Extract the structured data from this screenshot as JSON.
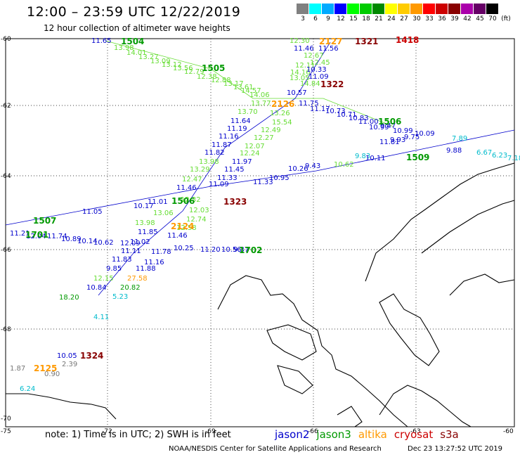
{
  "title": "12:00 – 23:59 UTC 12/22/2019",
  "subtitle": "12 hour collection of altimeter wave heights",
  "color_scale": {
    "unit_label": "(ft)",
    "values": [
      "3",
      "6",
      "9",
      "12",
      "15",
      "18",
      "21",
      "24",
      "27",
      "30",
      "33",
      "36",
      "39",
      "42",
      "45",
      "70"
    ],
    "colors": [
      "#808080",
      "#00ffff",
      "#00aaff",
      "#0000ff",
      "#00ff00",
      "#00cc00",
      "#008800",
      "#ffff00",
      "#ffcc00",
      "#ff9900",
      "#ff0000",
      "#cc0000",
      "#880000",
      "#aa00aa",
      "#660066",
      "#000000"
    ]
  },
  "axes": {
    "lat_labels": [
      "-60",
      "-62",
      "-64",
      "-66",
      "-68",
      "-70"
    ],
    "lon_labels": [
      "-75",
      "-72",
      "-69",
      "-66",
      "-63",
      "-60"
    ]
  },
  "palette": {
    "jason2": "#0000cc",
    "jason3": "#009900",
    "altika": "#ff9900",
    "cryosat": "#cc0000",
    "s3a": "#880000",
    "jason3_light": "#66dd33",
    "cyan": "#00bbcc",
    "gray": "#777777"
  },
  "pass_tags": [
    {
      "text": "1504",
      "color": "jason3"
    },
    {
      "text": "1505",
      "color": "jason3"
    },
    {
      "text": "1506",
      "color": "jason3"
    },
    {
      "text": "1509",
      "color": "jason3"
    },
    {
      "text": "1507",
      "color": "jason3"
    },
    {
      "text": "1701",
      "color": "jason3"
    },
    {
      "text": "1702",
      "color": "jason3"
    },
    {
      "text": "1506",
      "color": "jason3"
    },
    {
      "text": "2127",
      "color": "altika"
    },
    {
      "text": "2126",
      "color": "altika"
    },
    {
      "text": "2124",
      "color": "altika"
    },
    {
      "text": "2125",
      "color": "altika"
    },
    {
      "text": "1321",
      "color": "s3a"
    },
    {
      "text": "1322",
      "color": "s3a"
    },
    {
      "text": "1323",
      "color": "s3a"
    },
    {
      "text": "1324",
      "color": "s3a"
    },
    {
      "text": "1418",
      "color": "cryosat"
    }
  ],
  "wave_heights": [
    {
      "text": "11.65",
      "color": "jason2"
    },
    {
      "text": "13.98",
      "color": "jason3_light"
    },
    {
      "text": "14.01",
      "color": "jason3_light"
    },
    {
      "text": "13.27",
      "color": "jason3_light"
    },
    {
      "text": "13.09",
      "color": "jason3_light"
    },
    {
      "text": "13.12",
      "color": "jason3_light"
    },
    {
      "text": "13.56",
      "color": "jason3_light"
    },
    {
      "text": "12.79",
      "color": "jason3_light"
    },
    {
      "text": "12.38",
      "color": "jason3_light"
    },
    {
      "text": "12.88",
      "color": "jason3_light"
    },
    {
      "text": "13.17",
      "color": "jason3_light"
    },
    {
      "text": "13.61",
      "color": "jason3_light"
    },
    {
      "text": "14.57",
      "color": "jason3_light"
    },
    {
      "text": "14.06",
      "color": "jason3_light"
    },
    {
      "text": "13.77",
      "color": "jason3_light"
    },
    {
      "text": "13.70",
      "color": "jason3_light"
    },
    {
      "text": "12.30",
      "color": "jason3_light"
    },
    {
      "text": "11.46",
      "color": "jason2"
    },
    {
      "text": "11.56",
      "color": "jason2"
    },
    {
      "text": "12.67",
      "color": "jason3_light"
    },
    {
      "text": "12.45",
      "color": "jason3_light"
    },
    {
      "text": "12.11",
      "color": "jason3_light"
    },
    {
      "text": "14.16",
      "color": "jason3_light"
    },
    {
      "text": "10.33",
      "color": "jason2"
    },
    {
      "text": "13.05",
      "color": "jason3_light"
    },
    {
      "text": "11.09",
      "color": "jason2"
    },
    {
      "text": "14.84",
      "color": "jason3_light"
    },
    {
      "text": "10.57",
      "color": "jason2"
    },
    {
      "text": "11.75",
      "color": "jason2"
    },
    {
      "text": "11.17",
      "color": "jason2"
    },
    {
      "text": "10.73",
      "color": "jason2"
    },
    {
      "text": "13.26",
      "color": "jason3_light"
    },
    {
      "text": "10.71",
      "color": "jason2"
    },
    {
      "text": "10.83",
      "color": "jason2"
    },
    {
      "text": "11.64",
      "color": "jason2"
    },
    {
      "text": "15.54",
      "color": "jason3_light"
    },
    {
      "text": "11.00",
      "color": "jason2"
    },
    {
      "text": "10.99",
      "color": "jason2"
    },
    {
      "text": "9.47",
      "color": "jason2"
    },
    {
      "text": "10.99",
      "color": "jason2"
    },
    {
      "text": "11.19",
      "color": "jason2"
    },
    {
      "text": "12.49",
      "color": "jason3_light"
    },
    {
      "text": "11.16",
      "color": "jason2"
    },
    {
      "text": "12.27",
      "color": "jason3_light"
    },
    {
      "text": "11.87",
      "color": "jason2"
    },
    {
      "text": "12.07",
      "color": "jason3_light"
    },
    {
      "text": "11.82",
      "color": "jason2"
    },
    {
      "text": "12.24",
      "color": "jason3_light"
    },
    {
      "text": "13.98",
      "color": "jason3_light"
    },
    {
      "text": "11.97",
      "color": "jason2"
    },
    {
      "text": "13.29",
      "color": "jason3_light"
    },
    {
      "text": "11.45",
      "color": "jason2"
    },
    {
      "text": "12.47",
      "color": "jason3_light"
    },
    {
      "text": "11.33",
      "color": "jason2"
    },
    {
      "text": "11.46",
      "color": "jason2"
    },
    {
      "text": "11.09",
      "color": "jason2"
    },
    {
      "text": "12.32",
      "color": "jason3_light"
    },
    {
      "text": "12.03",
      "color": "jason3_light"
    },
    {
      "text": "13.06",
      "color": "jason3_light"
    },
    {
      "text": "12.74",
      "color": "jason3_light"
    },
    {
      "text": "13.98",
      "color": "jason3_light"
    },
    {
      "text": "12.58",
      "color": "jason3_light"
    },
    {
      "text": "11.85",
      "color": "jason2"
    },
    {
      "text": "11.46",
      "color": "jason2"
    },
    {
      "text": "11.02",
      "color": "jason2"
    },
    {
      "text": "12.09",
      "color": "jason2"
    },
    {
      "text": "10.25",
      "color": "jason2"
    },
    {
      "text": "11.20",
      "color": "jason2"
    },
    {
      "text": "10.56",
      "color": "jason2"
    },
    {
      "text": "9.37",
      "color": "jason2"
    },
    {
      "text": "11.11",
      "color": "jason2"
    },
    {
      "text": "11.78",
      "color": "jason2"
    },
    {
      "text": "11.83",
      "color": "jason2"
    },
    {
      "text": "11.16",
      "color": "jason2"
    },
    {
      "text": "9.85",
      "color": "jason2"
    },
    {
      "text": "11.88",
      "color": "jason2"
    },
    {
      "text": "12.15",
      "color": "jason3_light"
    },
    {
      "text": "27.58",
      "color": "altika"
    },
    {
      "text": "10.84",
      "color": "jason2"
    },
    {
      "text": "20.82",
      "color": "jason3"
    },
    {
      "text": "18.20",
      "color": "jason3"
    },
    {
      "text": "5.23",
      "color": "cyan"
    },
    {
      "text": "4.11",
      "color": "cyan"
    },
    {
      "text": "11.21",
      "color": "jason2"
    },
    {
      "text": "12.04",
      "color": "jason2"
    },
    {
      "text": "11.74",
      "color": "jason2"
    },
    {
      "text": "10.89",
      "color": "jason2"
    },
    {
      "text": "10.14",
      "color": "jason2"
    },
    {
      "text": "10.62",
      "color": "jason2"
    },
    {
      "text": "11.05",
      "color": "jason2"
    },
    {
      "text": "11.01",
      "color": "jason2"
    },
    {
      "text": "10.17",
      "color": "jason2"
    },
    {
      "text": "10.26",
      "color": "jason2"
    },
    {
      "text": "11.81",
      "color": "jason2"
    },
    {
      "text": "9.93",
      "color": "jason2"
    },
    {
      "text": "9.75",
      "color": "jason2"
    },
    {
      "text": "10.09",
      "color": "jason2"
    },
    {
      "text": "9.88",
      "color": "jason2"
    },
    {
      "text": "6.67",
      "color": "cyan"
    },
    {
      "text": "6.23",
      "color": "cyan"
    },
    {
      "text": "7.18",
      "color": "cyan"
    },
    {
      "text": "7.89",
      "color": "cyan"
    },
    {
      "text": "9.83",
      "color": "cyan"
    },
    {
      "text": "10.11",
      "color": "jason2"
    },
    {
      "text": "9.43",
      "color": "jason2"
    },
    {
      "text": "10.62",
      "color": "jason3_light"
    },
    {
      "text": "11.33",
      "color": "jason2"
    },
    {
      "text": "10.95",
      "color": "jason2"
    },
    {
      "text": "10.05",
      "color": "jason2"
    },
    {
      "text": "2.39",
      "color": "gray"
    },
    {
      "text": "0.90",
      "color": "gray"
    },
    {
      "text": "1.87",
      "color": "gray"
    },
    {
      "text": "6.24",
      "color": "cyan"
    },
    {
      "text": "0.59",
      "color": "gray"
    }
  ],
  "footer": {
    "note": "note:  1) Time is in UTC;  2) SWH is in feet",
    "legend": [
      {
        "label": "jason2",
        "color": "#0000cc"
      },
      {
        "label": "jason3",
        "color": "#009900"
      },
      {
        "label": "altika",
        "color": "#ff9900"
      },
      {
        "label": "cryosat",
        "color": "#cc0000"
      },
      {
        "label": "s3a",
        "color": "#880000"
      }
    ],
    "credit": "NOAA/NESDIS Center for Satellite Applications and Research",
    "timestamp": "Dec 23 13:27:52 UTC 2019"
  }
}
